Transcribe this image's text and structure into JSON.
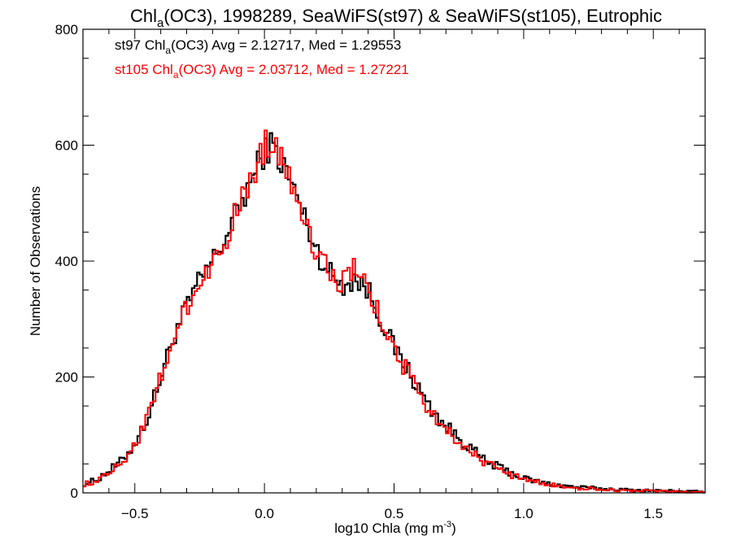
{
  "chart_data": {
    "type": "line",
    "title": {
      "pre": "Chl",
      "sub": "a",
      "post": "(OC3), 1998289, SeaWiFS(st97) & SeaWiFS(st105), Eutrophic"
    },
    "xlabel": {
      "pre": "log10 Chla (mg m",
      "sup": "-3",
      "post": ")"
    },
    "ylabel": "Number of Observations",
    "xlim": [
      -0.7,
      1.7
    ],
    "ylim": [
      0,
      800
    ],
    "xticks": [
      -0.5,
      0.0,
      0.5,
      1.0,
      1.5
    ],
    "xtick_labels": [
      "−0.5",
      "0.0",
      "0.5",
      "1.0",
      "1.5"
    ],
    "yticks": [
      0,
      200,
      400,
      600,
      800
    ],
    "ytick_labels": [
      "0",
      "200",
      "400",
      "600",
      "800"
    ],
    "step": "histogram",
    "bin_width": 0.01,
    "annotations": [
      {
        "series": "st97",
        "pre": "st97 Chl",
        "sub": "a",
        "post": "(OC3) Avg = 2.12717, Med = 1.29553",
        "color": "#000000"
      },
      {
        "series": "st105",
        "pre": "st105 Chl",
        "sub": "a",
        "post": "(OC3) Avg = 2.03712, Med = 1.27221",
        "color": "#ff0000"
      }
    ],
    "series": [
      {
        "name": "st97",
        "color": "#000000",
        "x": [
          -0.7,
          -0.65,
          -0.6,
          -0.55,
          -0.5,
          -0.45,
          -0.4,
          -0.35,
          -0.3,
          -0.25,
          -0.2,
          -0.15,
          -0.1,
          -0.05,
          0.0,
          0.03,
          0.06,
          0.1,
          0.15,
          0.2,
          0.25,
          0.3,
          0.35,
          0.4,
          0.45,
          0.5,
          0.55,
          0.6,
          0.65,
          0.7,
          0.75,
          0.8,
          0.85,
          0.9,
          0.95,
          1.0,
          1.1,
          1.2,
          1.3,
          1.4,
          1.5,
          1.6,
          1.7
        ],
        "y": [
          15,
          22,
          38,
          55,
          85,
          130,
          200,
          270,
          320,
          365,
          400,
          440,
          490,
          540,
          590,
          600,
          575,
          540,
          480,
          420,
          380,
          360,
          370,
          350,
          300,
          250,
          215,
          175,
          140,
          115,
          95,
          75,
          55,
          45,
          35,
          25,
          15,
          10,
          7,
          5,
          4,
          3,
          2
        ]
      },
      {
        "name": "st105",
        "color": "#ff0000",
        "x": [
          -0.7,
          -0.65,
          -0.6,
          -0.55,
          -0.5,
          -0.45,
          -0.4,
          -0.35,
          -0.3,
          -0.25,
          -0.2,
          -0.15,
          -0.1,
          -0.05,
          0.0,
          0.03,
          0.06,
          0.1,
          0.15,
          0.2,
          0.25,
          0.3,
          0.35,
          0.4,
          0.45,
          0.5,
          0.55,
          0.6,
          0.65,
          0.7,
          0.75,
          0.8,
          0.85,
          0.9,
          0.95,
          1.0,
          1.1,
          1.2,
          1.3,
          1.4,
          1.5,
          1.6,
          1.7
        ],
        "y": [
          14,
          21,
          36,
          53,
          83,
          128,
          198,
          268,
          318,
          363,
          398,
          438,
          492,
          545,
          598,
          610,
          585,
          548,
          485,
          415,
          378,
          362,
          385,
          355,
          298,
          245,
          210,
          170,
          135,
          110,
          90,
          70,
          52,
          42,
          32,
          23,
          14,
          9,
          6,
          4,
          3,
          2,
          1
        ]
      }
    ]
  }
}
